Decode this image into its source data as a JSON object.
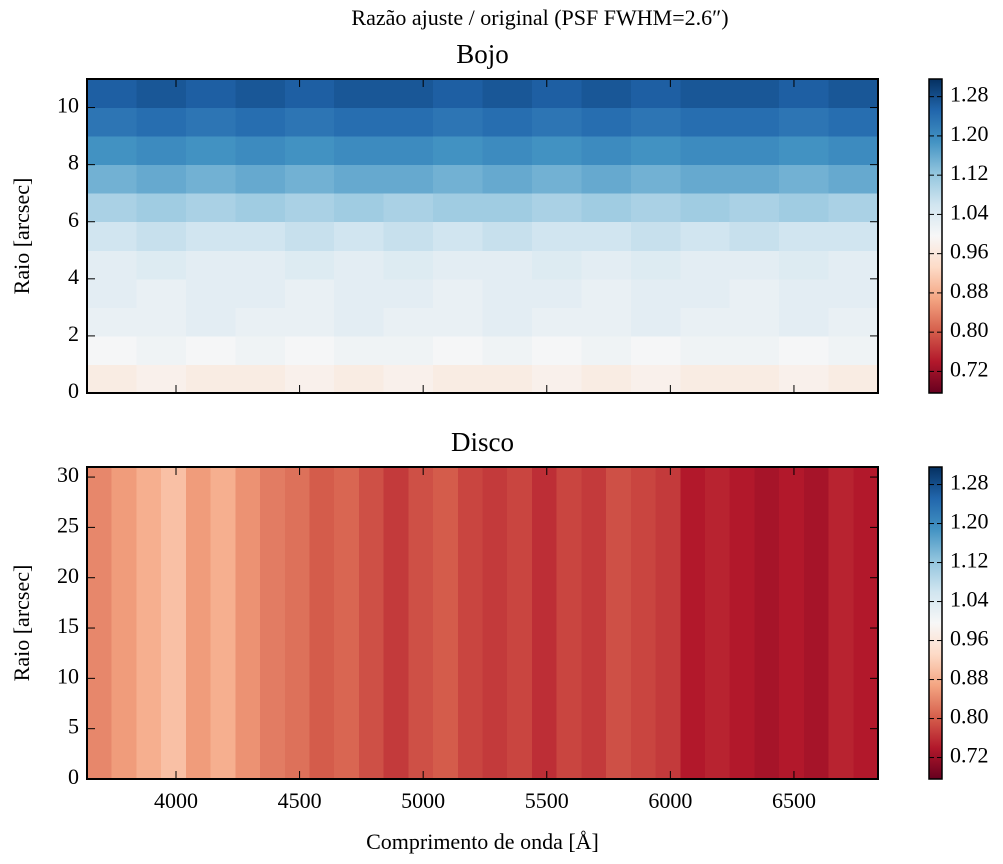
{
  "figure_title": "Razão ajuste / original (PSF FWHM=2.6″)",
  "chart_data": [
    {
      "type": "heatmap",
      "title": "Bojo",
      "ylabel": "Raio [arcsec]",
      "xlim": [
        3640,
        6840
      ],
      "ylim": [
        0,
        11
      ],
      "xticks": [
        4000,
        4500,
        5000,
        5500,
        6000,
        6500
      ],
      "yticks": [
        0,
        2,
        4,
        6,
        8,
        10
      ],
      "show_xticklabels": false,
      "x_edges": [
        3640,
        3840,
        4040,
        4240,
        4440,
        4640,
        4840,
        5040,
        5240,
        5440,
        5640,
        5840,
        6040,
        6240,
        6440,
        6640,
        6840
      ],
      "y_edges": [
        0,
        1,
        2,
        3,
        4,
        5,
        6,
        7,
        8,
        9,
        10,
        11
      ],
      "values": [
        [
          0.97,
          0.98,
          0.97,
          0.97,
          0.98,
          0.97,
          0.98,
          0.97,
          0.97,
          0.98,
          0.97,
          0.98,
          0.97,
          0.97,
          0.98,
          0.97
        ],
        [
          1.0,
          1.01,
          1.0,
          1.01,
          1.0,
          1.01,
          1.01,
          1.0,
          1.01,
          1.0,
          1.01,
          1.0,
          1.01,
          1.01,
          1.0,
          1.01
        ],
        [
          1.02,
          1.02,
          1.03,
          1.02,
          1.02,
          1.03,
          1.02,
          1.02,
          1.03,
          1.02,
          1.02,
          1.03,
          1.02,
          1.02,
          1.03,
          1.02
        ],
        [
          1.03,
          1.02,
          1.03,
          1.03,
          1.02,
          1.03,
          1.03,
          1.02,
          1.03,
          1.03,
          1.02,
          1.03,
          1.03,
          1.02,
          1.03,
          1.03
        ],
        [
          1.03,
          1.04,
          1.03,
          1.03,
          1.04,
          1.03,
          1.04,
          1.03,
          1.03,
          1.04,
          1.03,
          1.04,
          1.03,
          1.03,
          1.04,
          1.03
        ],
        [
          1.06,
          1.07,
          1.06,
          1.06,
          1.07,
          1.06,
          1.07,
          1.06,
          1.07,
          1.06,
          1.06,
          1.07,
          1.06,
          1.07,
          1.06,
          1.06
        ],
        [
          1.1,
          1.11,
          1.1,
          1.11,
          1.1,
          1.11,
          1.1,
          1.11,
          1.11,
          1.1,
          1.11,
          1.1,
          1.11,
          1.1,
          1.11,
          1.1
        ],
        [
          1.15,
          1.16,
          1.15,
          1.16,
          1.15,
          1.16,
          1.16,
          1.15,
          1.16,
          1.15,
          1.16,
          1.15,
          1.16,
          1.16,
          1.15,
          1.16
        ],
        [
          1.19,
          1.2,
          1.19,
          1.2,
          1.19,
          1.2,
          1.2,
          1.19,
          1.2,
          1.19,
          1.2,
          1.19,
          1.2,
          1.2,
          1.19,
          1.2
        ],
        [
          1.23,
          1.24,
          1.23,
          1.24,
          1.23,
          1.24,
          1.24,
          1.23,
          1.24,
          1.23,
          1.24,
          1.23,
          1.24,
          1.24,
          1.23,
          1.24
        ],
        [
          1.26,
          1.27,
          1.26,
          1.27,
          1.26,
          1.27,
          1.27,
          1.26,
          1.27,
          1.26,
          1.27,
          1.26,
          1.27,
          1.27,
          1.26,
          1.27
        ]
      ],
      "colormap": [
        "#67001f",
        "#b2182b",
        "#d6604d",
        "#f4a582",
        "#fddbc7",
        "#f7f7f7",
        "#d1e5f0",
        "#92c5de",
        "#4393c3",
        "#2166ac",
        "#053061"
      ],
      "clim": [
        0.676,
        1.316
      ],
      "colorbar_ticks": [
        0.72,
        {
          "value": 0.8,
          "label": "0.80"
        },
        0.88,
        0.96,
        1.04,
        1.12,
        {
          "value": 1.2,
          "label": "1.20"
        },
        1.28
      ]
    },
    {
      "type": "heatmap",
      "title": "Disco",
      "ylabel": "Raio [arcsec]",
      "xlabel": "Comprimento de onda [Å]",
      "xlim": [
        3640,
        6840
      ],
      "ylim": [
        0,
        31
      ],
      "xticks": [
        4000,
        4500,
        5000,
        5500,
        6000,
        6500
      ],
      "yticks": [
        0,
        5,
        10,
        15,
        20,
        25,
        30
      ],
      "show_xticklabels": true,
      "x_edges": [
        3640,
        3740,
        3840,
        3940,
        4040,
        4140,
        4240,
        4340,
        4440,
        4540,
        4640,
        4740,
        4840,
        4940,
        5040,
        5140,
        5240,
        5340,
        5440,
        5540,
        5640,
        5740,
        5840,
        5940,
        6040,
        6140,
        6240,
        6340,
        6440,
        6540,
        6640,
        6740,
        6840
      ],
      "y_edges": [
        0,
        31
      ],
      "values": [
        [
          0.84,
          0.86,
          0.88,
          0.9,
          0.86,
          0.88,
          0.85,
          0.83,
          0.82,
          0.8,
          0.81,
          0.79,
          0.77,
          0.79,
          0.8,
          0.78,
          0.77,
          0.78,
          0.76,
          0.78,
          0.77,
          0.79,
          0.78,
          0.77,
          0.74,
          0.75,
          0.74,
          0.73,
          0.74,
          0.73,
          0.75,
          0.74
        ]
      ],
      "colormap": [
        "#67001f",
        "#b2182b",
        "#d6604d",
        "#f4a582",
        "#fddbc7",
        "#f7f7f7",
        "#d1e5f0",
        "#92c5de",
        "#4393c3",
        "#2166ac",
        "#053061"
      ],
      "clim": [
        0.676,
        1.316
      ],
      "colorbar_ticks": [
        0.72,
        {
          "value": 0.8,
          "label": "0.80"
        },
        0.88,
        0.96,
        1.04,
        1.12,
        {
          "value": 1.2,
          "label": "1.20"
        },
        1.28
      ]
    }
  ]
}
